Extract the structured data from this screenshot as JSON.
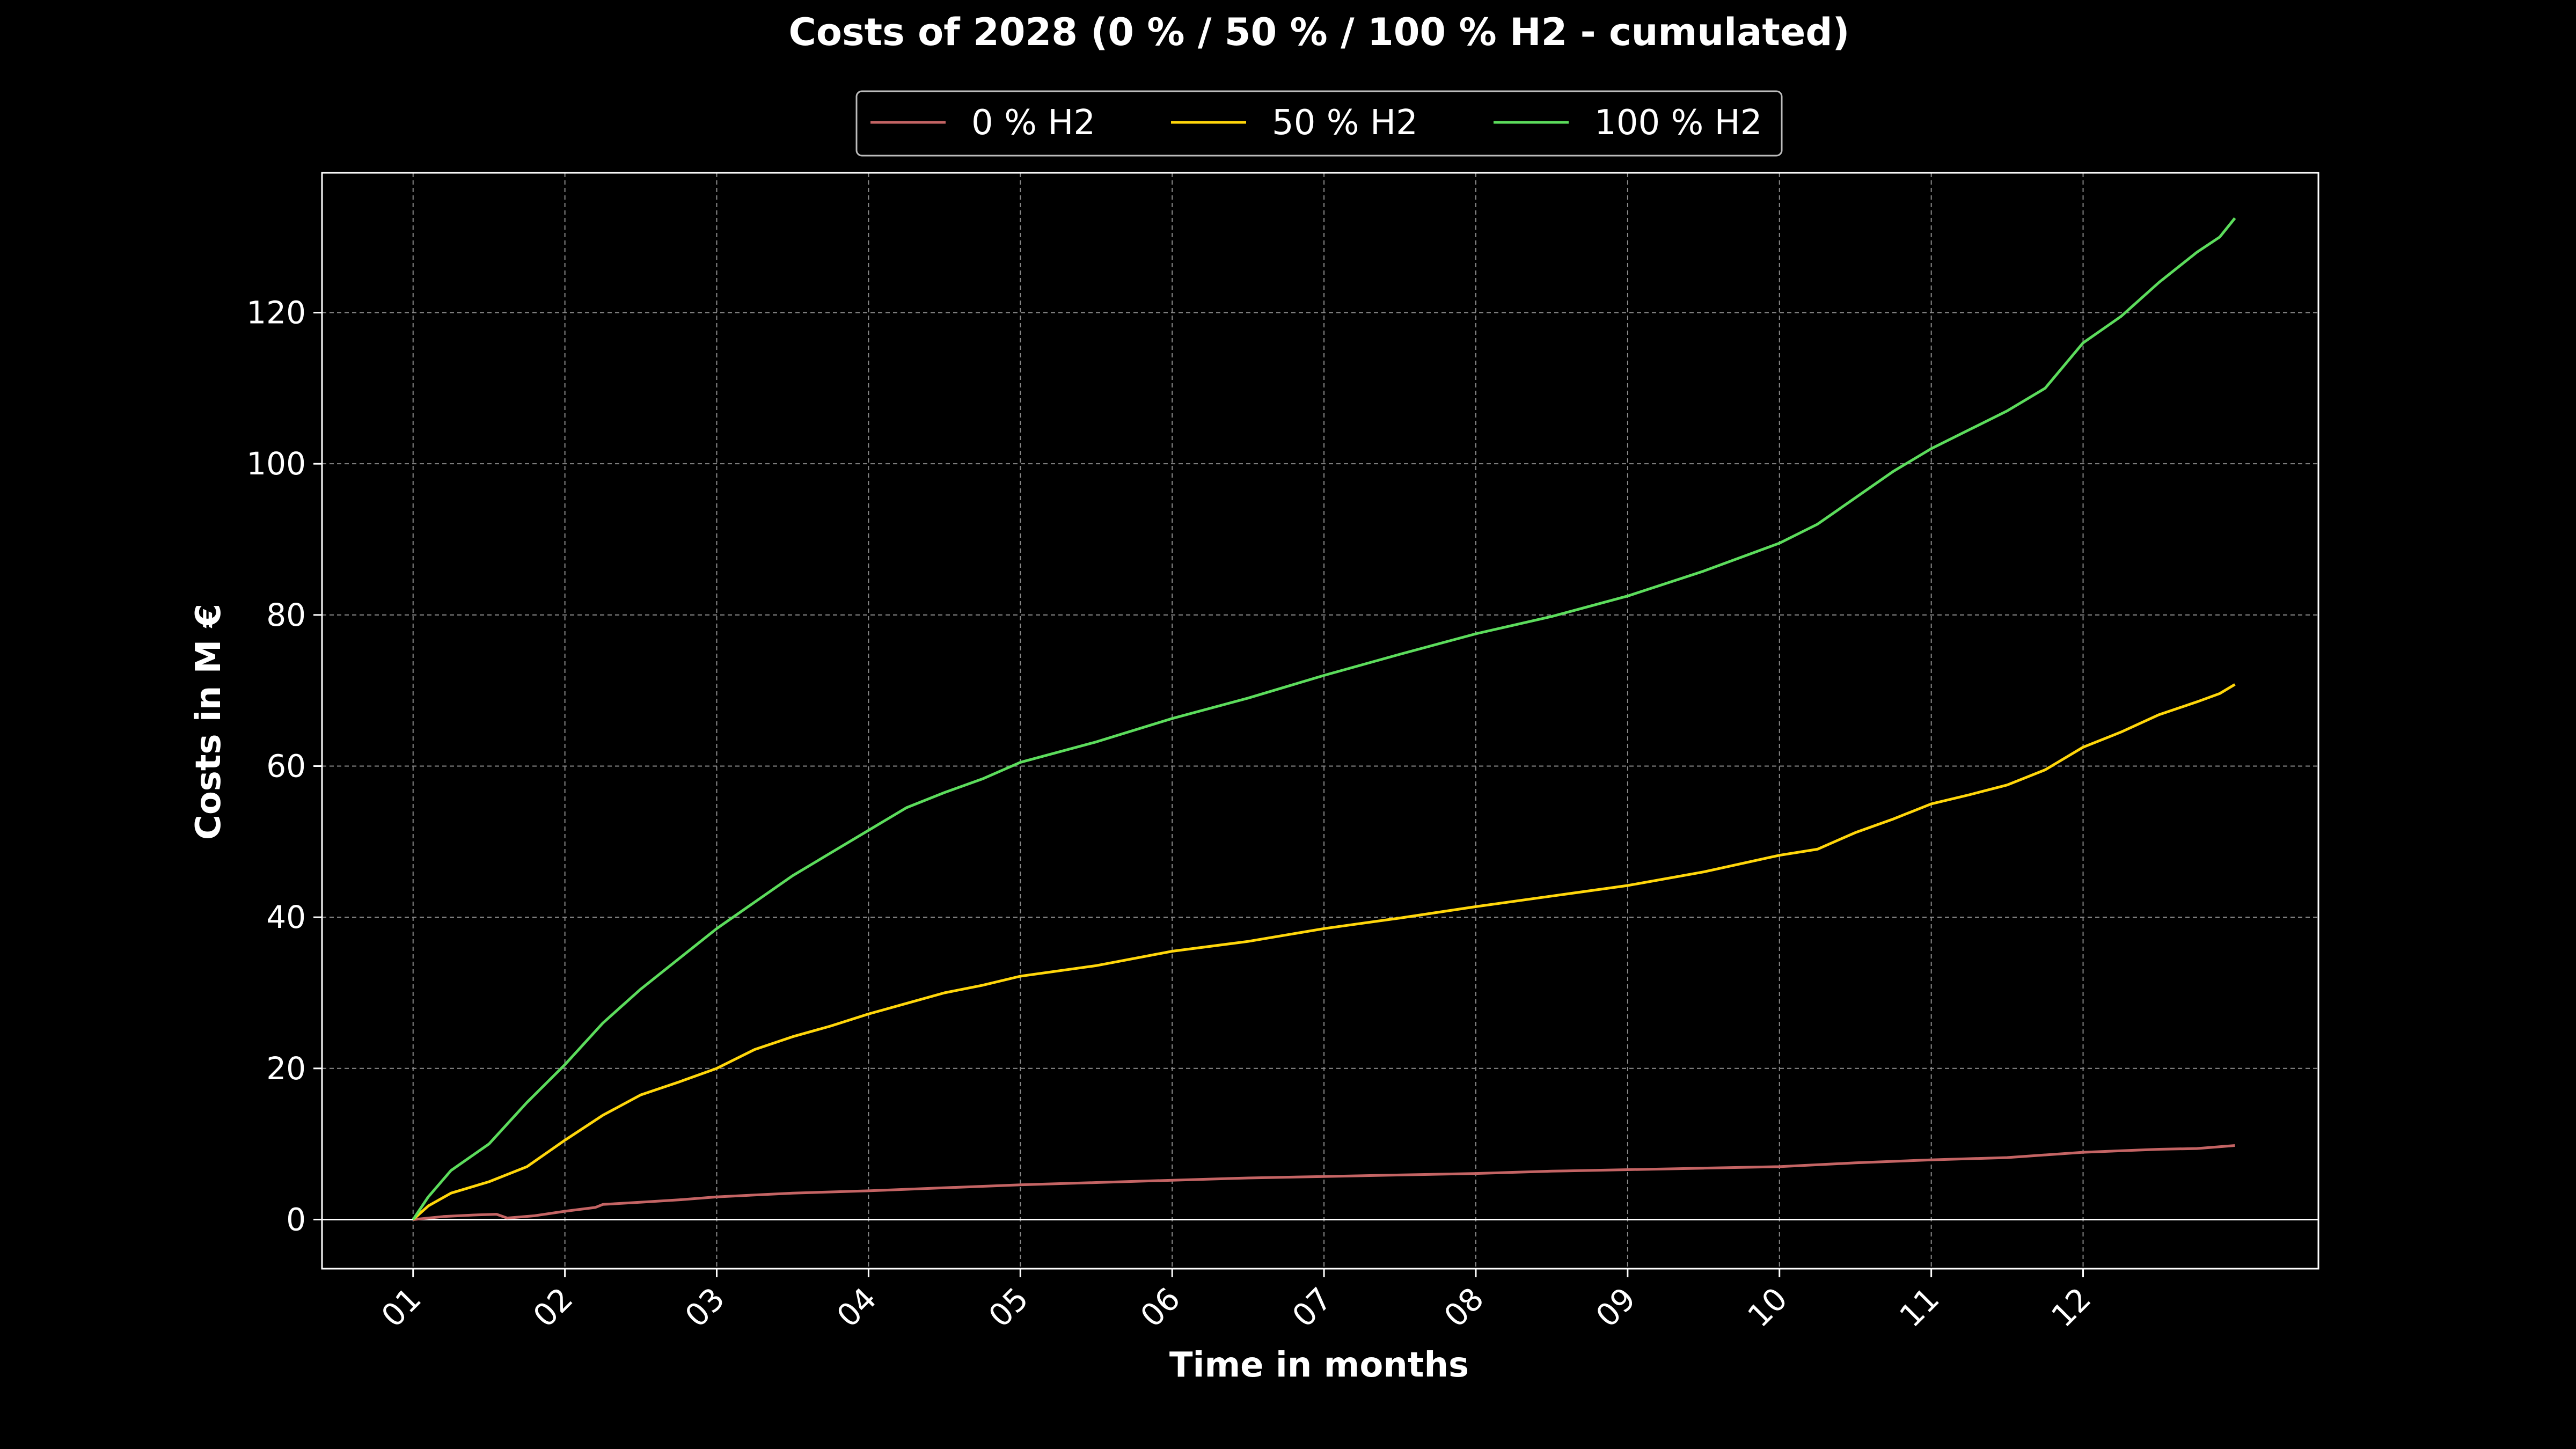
{
  "chart_data": {
    "type": "line",
    "title": "Costs of 2028 (0 % / 50 % / 100 % H2 - cumulated)",
    "xlabel": "Time in months",
    "ylabel": "Costs in M €",
    "xlim": [
      0.4,
      13.55
    ],
    "ylim": [
      -6.5,
      138.5
    ],
    "x_ticks": [
      1,
      2,
      3,
      4,
      5,
      6,
      7,
      8,
      9,
      10,
      11,
      12
    ],
    "x_tick_labels": [
      "01",
      "02",
      "03",
      "04",
      "05",
      "06",
      "07",
      "08",
      "09",
      "10",
      "11",
      "12"
    ],
    "y_ticks": [
      0,
      20,
      40,
      60,
      80,
      100,
      120
    ],
    "y_tick_labels": [
      "0",
      "20",
      "40",
      "60",
      "80",
      "100",
      "120"
    ],
    "grid": true,
    "zero_line": true,
    "legend_position": "top-center",
    "series": [
      {
        "name": "0 % H2",
        "color": "#c46464",
        "points": [
          [
            1.0,
            0.0
          ],
          [
            1.2,
            0.4
          ],
          [
            1.4,
            0.6
          ],
          [
            1.55,
            0.7
          ],
          [
            1.62,
            0.2
          ],
          [
            1.8,
            0.5
          ],
          [
            2.0,
            1.1
          ],
          [
            2.2,
            1.6
          ],
          [
            2.25,
            2.0
          ],
          [
            2.5,
            2.3
          ],
          [
            2.75,
            2.6
          ],
          [
            3.0,
            3.0
          ],
          [
            3.5,
            3.5
          ],
          [
            4.0,
            3.8
          ],
          [
            4.5,
            4.2
          ],
          [
            5.0,
            4.6
          ],
          [
            5.5,
            4.9
          ],
          [
            6.0,
            5.2
          ],
          [
            6.5,
            5.5
          ],
          [
            7.0,
            5.7
          ],
          [
            7.5,
            5.9
          ],
          [
            8.0,
            6.1
          ],
          [
            8.5,
            6.4
          ],
          [
            9.0,
            6.6
          ],
          [
            9.5,
            6.8
          ],
          [
            10.0,
            7.0
          ],
          [
            10.5,
            7.5
          ],
          [
            11.0,
            7.9
          ],
          [
            11.5,
            8.2
          ],
          [
            12.0,
            8.9
          ],
          [
            12.5,
            9.3
          ],
          [
            12.75,
            9.4
          ],
          [
            13.0,
            9.8
          ]
        ]
      },
      {
        "name": "50 % H2",
        "color": "#ffd60a",
        "points": [
          [
            1.0,
            0.0
          ],
          [
            1.1,
            1.8
          ],
          [
            1.25,
            3.5
          ],
          [
            1.5,
            5.0
          ],
          [
            1.75,
            7.0
          ],
          [
            2.0,
            10.5
          ],
          [
            2.25,
            13.8
          ],
          [
            2.5,
            16.5
          ],
          [
            2.75,
            18.2
          ],
          [
            3.0,
            20.0
          ],
          [
            3.25,
            22.5
          ],
          [
            3.5,
            24.2
          ],
          [
            3.75,
            25.6
          ],
          [
            4.0,
            27.2
          ],
          [
            4.25,
            28.6
          ],
          [
            4.5,
            30.0
          ],
          [
            4.75,
            31.0
          ],
          [
            5.0,
            32.2
          ],
          [
            5.5,
            33.6
          ],
          [
            6.0,
            35.5
          ],
          [
            6.5,
            36.8
          ],
          [
            7.0,
            38.5
          ],
          [
            7.5,
            39.9
          ],
          [
            8.0,
            41.4
          ],
          [
            8.5,
            42.8
          ],
          [
            9.0,
            44.2
          ],
          [
            9.5,
            46.0
          ],
          [
            10.0,
            48.2
          ],
          [
            10.25,
            49.0
          ],
          [
            10.5,
            51.2
          ],
          [
            10.75,
            53.0
          ],
          [
            11.0,
            55.0
          ],
          [
            11.25,
            56.2
          ],
          [
            11.5,
            57.5
          ],
          [
            11.75,
            59.5
          ],
          [
            12.0,
            62.5
          ],
          [
            12.25,
            64.5
          ],
          [
            12.5,
            66.8
          ],
          [
            12.75,
            68.5
          ],
          [
            12.9,
            69.6
          ],
          [
            13.0,
            70.8
          ]
        ]
      },
      {
        "name": "100 % H2",
        "color": "#5cdc5c",
        "points": [
          [
            1.0,
            0.0
          ],
          [
            1.1,
            3.0
          ],
          [
            1.25,
            6.5
          ],
          [
            1.5,
            10.0
          ],
          [
            1.75,
            15.5
          ],
          [
            2.0,
            20.5
          ],
          [
            2.25,
            26.0
          ],
          [
            2.5,
            30.5
          ],
          [
            2.75,
            34.5
          ],
          [
            3.0,
            38.5
          ],
          [
            3.25,
            42.0
          ],
          [
            3.5,
            45.5
          ],
          [
            3.75,
            48.5
          ],
          [
            4.0,
            51.5
          ],
          [
            4.25,
            54.5
          ],
          [
            4.5,
            56.5
          ],
          [
            4.75,
            58.3
          ],
          [
            5.0,
            60.5
          ],
          [
            5.5,
            63.2
          ],
          [
            6.0,
            66.3
          ],
          [
            6.5,
            69.0
          ],
          [
            7.0,
            72.0
          ],
          [
            7.5,
            74.8
          ],
          [
            8.0,
            77.5
          ],
          [
            8.5,
            79.8
          ],
          [
            9.0,
            82.5
          ],
          [
            9.5,
            85.8
          ],
          [
            10.0,
            89.5
          ],
          [
            10.25,
            92.0
          ],
          [
            10.5,
            95.5
          ],
          [
            10.75,
            99.0
          ],
          [
            11.0,
            102.0
          ],
          [
            11.25,
            104.5
          ],
          [
            11.5,
            107.0
          ],
          [
            11.75,
            110.0
          ],
          [
            12.0,
            116.0
          ],
          [
            12.25,
            119.5
          ],
          [
            12.5,
            124.0
          ],
          [
            12.75,
            128.0
          ],
          [
            12.9,
            130.0
          ],
          [
            13.0,
            132.5
          ]
        ]
      }
    ]
  }
}
